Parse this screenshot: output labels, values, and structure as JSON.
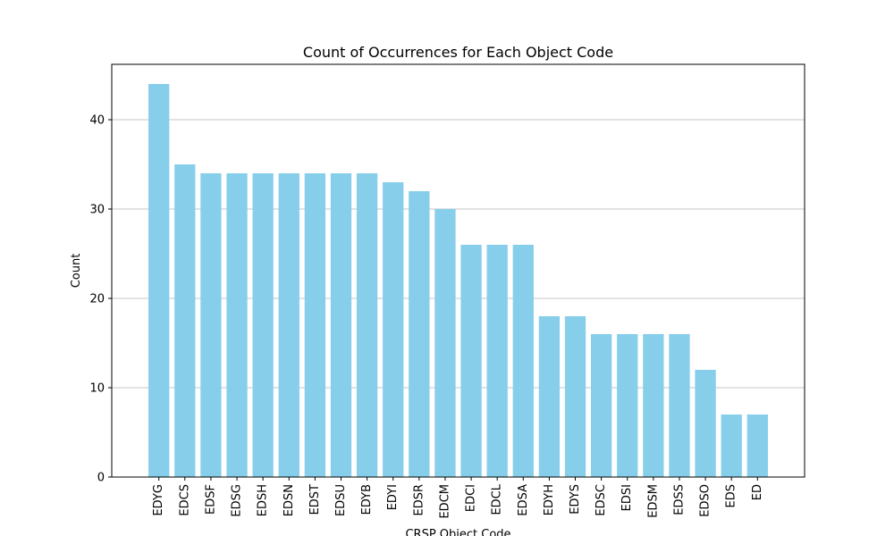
{
  "chart_data": {
    "type": "bar",
    "title": "Count of Occurrences for Each Object Code",
    "xlabel": "CRSP Object Code",
    "ylabel": "Count",
    "categories": [
      "EDYG",
      "EDCS",
      "EDSF",
      "EDSG",
      "EDSH",
      "EDSN",
      "EDST",
      "EDSU",
      "EDYB",
      "EDYI",
      "EDSR",
      "EDCM",
      "EDCI",
      "EDCL",
      "EDSA",
      "EDYH",
      "EDYS",
      "EDSC",
      "EDSI",
      "EDSM",
      "EDSS",
      "EDSO",
      "EDS",
      "ED"
    ],
    "values": [
      44,
      35,
      34,
      34,
      34,
      34,
      34,
      34,
      34,
      33,
      32,
      30,
      26,
      26,
      26,
      18,
      18,
      16,
      16,
      16,
      16,
      12,
      7,
      7
    ],
    "ylim": [
      0,
      46.2
    ],
    "yticks": [
      0,
      10,
      20,
      30,
      40
    ],
    "grid": "y",
    "bar_color": "#87ceeb",
    "grid_color": "#b0b0b0"
  }
}
